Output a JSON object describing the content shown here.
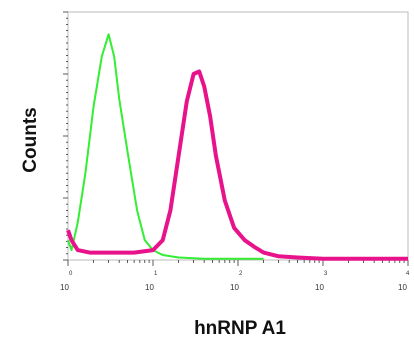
{
  "chart_data": {
    "type": "line",
    "title": "",
    "xlabel": "hnRNP A1",
    "ylabel": "Counts",
    "x_scale": "log",
    "xlim": [
      1,
      10000
    ],
    "ylim": [
      0,
      100
    ],
    "x_tick_labels": [
      {
        "base": "10",
        "exp": "0"
      },
      {
        "base": "10",
        "exp": "1"
      },
      {
        "base": "10",
        "exp": "2"
      },
      {
        "base": "10",
        "exp": "3"
      },
      {
        "base": "10",
        "exp": "4"
      }
    ],
    "grid": false,
    "legend": "none",
    "series": [
      {
        "color": "#33ee33",
        "x": [
          1.0,
          1.1,
          1.3,
          1.6,
          2.0,
          2.5,
          3.0,
          3.5,
          4.0,
          5.0,
          6.5,
          8.0,
          10,
          13,
          20,
          40,
          80,
          200
        ],
        "y": [
          8,
          4,
          15,
          35,
          62,
          82,
          91,
          82,
          65,
          44,
          20,
          8,
          4,
          2,
          1,
          0.5,
          0.5,
          0.5
        ]
      },
      {
        "color": "#e8128a",
        "x": [
          1.0,
          1.1,
          1.3,
          1.8,
          3,
          6,
          10,
          13,
          16,
          20,
          25,
          30,
          35,
          40,
          47,
          55,
          70,
          90,
          120,
          160,
          200,
          300,
          500,
          1000,
          10000
        ],
        "y": [
          12,
          8,
          4,
          3,
          3,
          3,
          4,
          8,
          20,
          42,
          64,
          75,
          76,
          70,
          58,
          42,
          24,
          13,
          8,
          5,
          3,
          1.5,
          1,
          0.5,
          0.5
        ]
      }
    ]
  }
}
